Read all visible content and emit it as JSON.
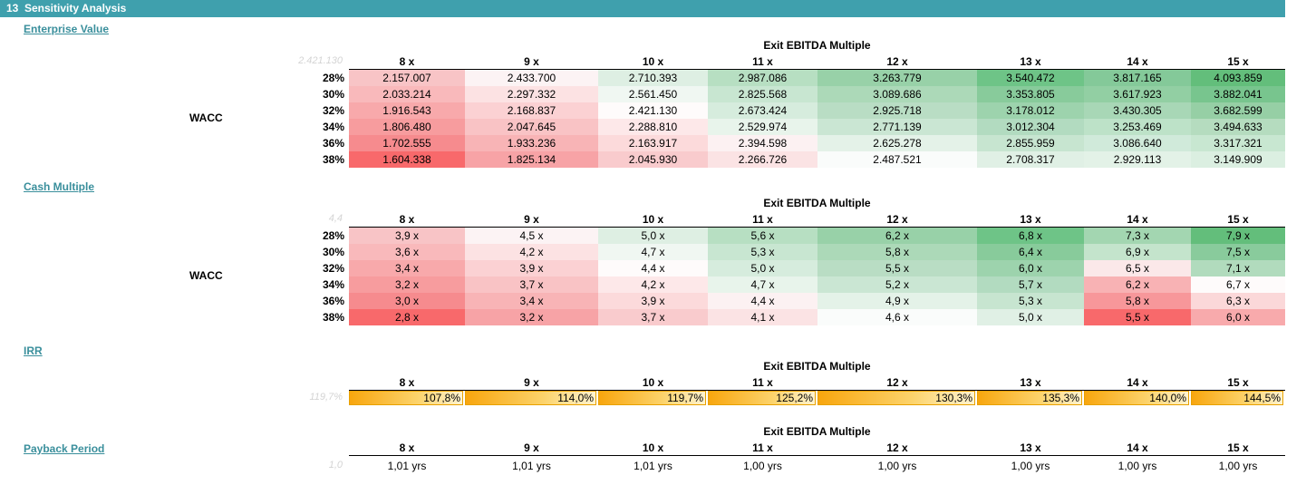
{
  "header": {
    "number": "13",
    "title": "Sensitivity Analysis"
  },
  "columns": [
    "8 x",
    "9 x",
    "10 x",
    "11 x",
    "12 x",
    "13 x",
    "14 x",
    "15 x"
  ],
  "wacc_label": "WACC",
  "enterprise_value": {
    "title": "Enterprise Value ",
    "axis_title": "Exit EBITDA Multiple",
    "corner": "2.421.130",
    "rows": [
      {
        "label": "28%",
        "values": [
          "2.157.007",
          "2.433.700",
          "2.710.393",
          "2.987.086",
          "3.263.779",
          "3.540.472",
          "3.817.165",
          "4.093.859"
        ]
      },
      {
        "label": "30%",
        "values": [
          "2.033.214",
          "2.297.332",
          "2.561.450",
          "2.825.568",
          "3.089.686",
          "3.353.805",
          "3.617.923",
          "3.882.041"
        ]
      },
      {
        "label": "32%",
        "values": [
          "1.916.543",
          "2.168.837",
          "2.421.130",
          "2.673.424",
          "2.925.718",
          "3.178.012",
          "3.430.305",
          "3.682.599"
        ]
      },
      {
        "label": "34%",
        "values": [
          "1.806.480",
          "2.047.645",
          "2.288.810",
          "2.529.974",
          "2.771.139",
          "3.012.304",
          "3.253.469",
          "3.494.633"
        ]
      },
      {
        "label": "36%",
        "values": [
          "1.702.555",
          "1.933.236",
          "2.163.917",
          "2.394.598",
          "2.625.278",
          "2.855.959",
          "3.086.640",
          "3.317.321"
        ]
      },
      {
        "label": "38%",
        "values": [
          "1.604.338",
          "1.825.134",
          "2.045.930",
          "2.266.726",
          "2.487.521",
          "2.708.317",
          "2.929.113",
          "3.149.909"
        ]
      }
    ]
  },
  "cash_multiple": {
    "title": "Cash Multiple",
    "axis_title": "Exit EBITDA Multiple",
    "corner": "4,4",
    "rows": [
      {
        "label": "28%",
        "values": [
          "3,9 x",
          "4,5 x",
          "5,0 x",
          "5,6 x",
          "6,2 x",
          "6,8 x",
          "7,3 x",
          "7,9 x"
        ]
      },
      {
        "label": "30%",
        "values": [
          "3,6 x",
          "4,2 x",
          "4,7 x",
          "5,3 x",
          "5,8 x",
          "6,4 x",
          "6,9 x",
          "7,5 x"
        ]
      },
      {
        "label": "32%",
        "values": [
          "3,4 x",
          "3,9 x",
          "4,4 x",
          "5,0 x",
          "5,5 x",
          "6,0 x",
          "6,5 x",
          "7,1 x"
        ]
      },
      {
        "label": "34%",
        "values": [
          "3,2 x",
          "3,7 x",
          "4,2 x",
          "4,7 x",
          "5,2 x",
          "5,7 x",
          "6,2 x",
          "6,7 x"
        ]
      },
      {
        "label": "36%",
        "values": [
          "3,0 x",
          "3,4 x",
          "3,9 x",
          "4,4 x",
          "4,9 x",
          "5,3 x",
          "5,8 x",
          "6,3 x"
        ]
      },
      {
        "label": "38%",
        "values": [
          "2,8 x",
          "3,2 x",
          "3,7 x",
          "4,1 x",
          "4,6 x",
          "5,0 x",
          "5,5 x",
          "6,0 x"
        ]
      }
    ]
  },
  "irr": {
    "title": "IRR",
    "axis_title": "Exit EBITDA Multiple",
    "corner": "119,7%",
    "values": [
      "107,8%",
      "114,0%",
      "119,7%",
      "125,2%",
      "130,3%",
      "135,3%",
      "140,0%",
      "144,5%"
    ]
  },
  "payback": {
    "title": "Payback Period",
    "axis_title": "Exit EBITDA Multiple",
    "corner": "1,0",
    "values": [
      "1,01 yrs",
      "1,01 yrs",
      "1,01 yrs",
      "1,00 yrs",
      "1,00 yrs",
      "1,00 yrs",
      "1,00 yrs",
      "1,00 yrs"
    ]
  },
  "colors": {
    "ev": [
      [
        "#f8c4c6",
        "#fcf3f4",
        "#deefe3",
        "#b7dfc2",
        "#98d1a8",
        "#6ec487",
        "#84c999",
        "#63be7b"
      ],
      [
        "#f9b9bb",
        "#fce2e3",
        "#f0f7f2",
        "#c8e6d1",
        "#acd9b8",
        "#88cb9b",
        "#92cfa3",
        "#78c58e"
      ],
      [
        "#f8a9ab",
        "#fbd1d3",
        "#fefbfb",
        "#d6ecdd",
        "#b9ddc4",
        "#9dd3ad",
        "#a8d7b6",
        "#96cfa5"
      ],
      [
        "#f79c9e",
        "#f9c3c5",
        "#fde8e9",
        "#e8f4eb",
        "#cae6d3",
        "#b2dbc0",
        "#bde2c8",
        "#b5dcbf"
      ],
      [
        "#f68b8e",
        "#f8b4b6",
        "#fcdadb",
        "#fcf1f2",
        "#e4f2e8",
        "#c7e5d0",
        "#d0eada",
        "#c8e7d1"
      ],
      [
        "#f8696b",
        "#f7a3a6",
        "#f9cbcd",
        "#fbe3e4",
        "#fafcfb",
        "#e0f0e5",
        "#e3f2e7",
        "#dbefe1"
      ]
    ],
    "cm": [
      [
        "#f8c4c6",
        "#fcf3f4",
        "#deefe3",
        "#b7dfc2",
        "#98d1a8",
        "#6ec487",
        "#a3d6b1",
        "#63be7b"
      ],
      [
        "#f9b9bb",
        "#fce2e3",
        "#f0f7f2",
        "#c8e6d1",
        "#acd9b8",
        "#88cb9b",
        "#c4e4cc",
        "#89cb9c"
      ],
      [
        "#f8a9ab",
        "#fbd1d3",
        "#fefbfb",
        "#d6ecdd",
        "#b9ddc4",
        "#9dd3ad",
        "#fbe8e9",
        "#b1dbbd"
      ],
      [
        "#f79c9e",
        "#f9c3c5",
        "#fde8e9",
        "#e8f4eb",
        "#cae6d3",
        "#b2dbc0",
        "#f8b2b4",
        "#fefbfb"
      ],
      [
        "#f68b8e",
        "#f8b4b6",
        "#fcdadb",
        "#fcf1f2",
        "#e4f2e8",
        "#c7e5d0",
        "#f7979a",
        "#fbd8d9"
      ],
      [
        "#f8696b",
        "#f7a3a6",
        "#f9cbcd",
        "#fbe3e4",
        "#fafcfb",
        "#e0f0e5",
        "#f8696b",
        "#f8aaac"
      ]
    ]
  }
}
